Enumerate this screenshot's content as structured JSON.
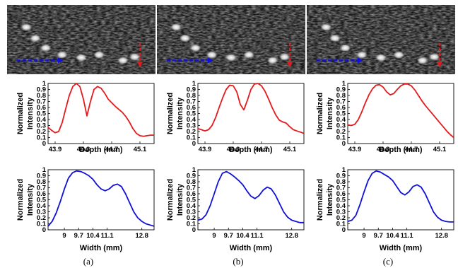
{
  "panels": [
    {
      "caption": "(a)",
      "image": {
        "description_icon": "ultrasound-bmode-image"
      },
      "depth_plot": {
        "type": "line",
        "color": "#e41a1c",
        "xlabel": "Depth (mm)",
        "ylabel_line1": "Normalized",
        "ylabel_line2": "Intensity",
        "xlim": [
          43.8,
          45.3
        ],
        "ylim": [
          0,
          1
        ],
        "xticks": [
          "43.9",
          "44.3",
          "44.7",
          "45.1"
        ],
        "yticks": [
          "0",
          "0.1",
          "0.2",
          "0.3",
          "0.4",
          "0.5",
          "0.6",
          "0.7",
          "0.8",
          "0.9",
          "1"
        ],
        "x": [
          43.8,
          43.85,
          43.9,
          43.95,
          44.0,
          44.05,
          44.1,
          44.15,
          44.2,
          44.25,
          44.3,
          44.35,
          44.4,
          44.45,
          44.5,
          44.55,
          44.6,
          44.65,
          44.7,
          44.75,
          44.8,
          44.85,
          44.9,
          44.95,
          45.0,
          45.05,
          45.1,
          45.15,
          45.2,
          45.25,
          45.3
        ],
        "y": [
          0.27,
          0.22,
          0.18,
          0.2,
          0.35,
          0.58,
          0.8,
          0.95,
          1.0,
          0.95,
          0.74,
          0.46,
          0.7,
          0.9,
          0.95,
          0.92,
          0.84,
          0.74,
          0.68,
          0.62,
          0.57,
          0.52,
          0.45,
          0.36,
          0.25,
          0.17,
          0.13,
          0.12,
          0.13,
          0.14,
          0.14
        ]
      },
      "width_plot": {
        "type": "line",
        "color": "#1010d8",
        "xlabel": "Width (mm)",
        "ylabel_line1": "Normalized",
        "ylabel_line2": "Intensity",
        "xlim": [
          8.2,
          13.4
        ],
        "ylim": [
          0,
          1
        ],
        "xticks": [
          "9",
          "9.7",
          "10.4",
          "11.1",
          "12.8"
        ],
        "yticks": [
          "0",
          "0.1",
          "0.2",
          "0.3",
          "0.4",
          "0.5",
          "0.6",
          "0.7",
          "0.8",
          "0.9",
          "1"
        ],
        "x": [
          8.2,
          8.4,
          8.6,
          8.8,
          9.0,
          9.2,
          9.4,
          9.6,
          9.8,
          10.0,
          10.2,
          10.4,
          10.6,
          10.8,
          11.0,
          11.2,
          11.4,
          11.6,
          11.8,
          12.0,
          12.2,
          12.4,
          12.6,
          12.8,
          13.0,
          13.2,
          13.4
        ],
        "y": [
          0.06,
          0.14,
          0.28,
          0.47,
          0.68,
          0.86,
          0.95,
          0.98,
          0.97,
          0.94,
          0.9,
          0.84,
          0.75,
          0.68,
          0.65,
          0.68,
          0.74,
          0.76,
          0.72,
          0.6,
          0.45,
          0.3,
          0.2,
          0.14,
          0.1,
          0.08,
          0.06
        ]
      }
    },
    {
      "caption": "(b)",
      "image": {
        "description_icon": "ultrasound-bmode-image"
      },
      "depth_plot": {
        "type": "line",
        "color": "#e41a1c",
        "xlabel": "Depth (mm)",
        "ylabel_line1": "Normalized",
        "ylabel_line2": "Intensity",
        "xlim": [
          43.8,
          45.3
        ],
        "ylim": [
          0,
          1
        ],
        "xticks": [
          "43.9",
          "44.3",
          "44.7",
          "45.1"
        ],
        "yticks": [
          "0",
          "0.1",
          "0.2",
          "0.3",
          "0.4",
          "0.5",
          "0.6",
          "0.7",
          "0.8",
          "0.9",
          "1"
        ],
        "x": [
          43.8,
          43.85,
          43.9,
          43.95,
          44.0,
          44.05,
          44.1,
          44.15,
          44.2,
          44.25,
          44.3,
          44.35,
          44.4,
          44.45,
          44.5,
          44.55,
          44.6,
          44.65,
          44.7,
          44.75,
          44.8,
          44.85,
          44.9,
          44.95,
          45.0,
          45.05,
          45.1,
          45.15,
          45.2,
          45.25,
          45.3
        ],
        "y": [
          0.25,
          0.23,
          0.21,
          0.23,
          0.3,
          0.43,
          0.6,
          0.76,
          0.9,
          0.97,
          0.96,
          0.86,
          0.65,
          0.56,
          0.72,
          0.9,
          0.99,
          1.0,
          0.96,
          0.87,
          0.74,
          0.6,
          0.48,
          0.39,
          0.36,
          0.34,
          0.28,
          0.23,
          0.21,
          0.19,
          0.17
        ]
      },
      "width_plot": {
        "type": "line",
        "color": "#1010d8",
        "xlabel": "Width (mm)",
        "ylabel_line1": "Normalized",
        "ylabel_line2": "Intensity",
        "xlim": [
          8.2,
          13.4
        ],
        "ylim": [
          0,
          1
        ],
        "xticks": [
          "9",
          "9.7",
          "10.4",
          "11.1",
          "12.8"
        ],
        "yticks": [
          "0",
          "0.1",
          "0.2",
          "0.3",
          "0.4",
          "0.5",
          "0.6",
          "0.7",
          "0.8",
          "0.9",
          "1"
        ],
        "x": [
          8.2,
          8.4,
          8.6,
          8.8,
          9.0,
          9.2,
          9.4,
          9.6,
          9.8,
          10.0,
          10.2,
          10.4,
          10.6,
          10.8,
          11.0,
          11.2,
          11.4,
          11.6,
          11.8,
          12.0,
          12.2,
          12.4,
          12.6,
          12.8,
          13.0,
          13.2,
          13.4
        ],
        "y": [
          0.16,
          0.18,
          0.25,
          0.4,
          0.6,
          0.8,
          0.94,
          0.97,
          0.93,
          0.88,
          0.82,
          0.75,
          0.65,
          0.56,
          0.52,
          0.57,
          0.66,
          0.71,
          0.68,
          0.58,
          0.44,
          0.3,
          0.21,
          0.16,
          0.14,
          0.12,
          0.12
        ]
      }
    },
    {
      "caption": "(c)",
      "image": {
        "description_icon": "ultrasound-bmode-image"
      },
      "depth_plot": {
        "type": "line",
        "color": "#e41a1c",
        "xlabel": "Depth (mm)",
        "ylabel_line1": "Normalized",
        "ylabel_line2": "Intensity",
        "xlim": [
          43.8,
          45.3
        ],
        "ylim": [
          0,
          1
        ],
        "xticks": [
          "43.9",
          "44.3",
          "44.7",
          "45.1"
        ],
        "yticks": [
          "0",
          "0.1",
          "0.2",
          "0.3",
          "0.4",
          "0.5",
          "0.6",
          "0.7",
          "0.8",
          "0.9",
          "1"
        ],
        "x": [
          43.8,
          43.85,
          43.9,
          43.95,
          44.0,
          44.05,
          44.1,
          44.15,
          44.2,
          44.25,
          44.3,
          44.35,
          44.4,
          44.45,
          44.5,
          44.55,
          44.6,
          44.65,
          44.7,
          44.75,
          44.8,
          44.85,
          44.9,
          44.95,
          45.0,
          45.05,
          45.1,
          45.15,
          45.2,
          45.25,
          45.3
        ],
        "y": [
          0.31,
          0.3,
          0.32,
          0.4,
          0.53,
          0.68,
          0.81,
          0.91,
          0.97,
          0.98,
          0.94,
          0.86,
          0.81,
          0.83,
          0.9,
          0.96,
          0.99,
          0.99,
          0.96,
          0.89,
          0.8,
          0.71,
          0.63,
          0.56,
          0.49,
          0.42,
          0.35,
          0.28,
          0.21,
          0.15,
          0.1
        ]
      },
      "width_plot": {
        "type": "line",
        "color": "#1010d8",
        "xlabel": "Width (mm)",
        "ylabel_line1": "Normalized",
        "ylabel_line2": "Intensity",
        "xlim": [
          8.2,
          13.4
        ],
        "ylim": [
          0,
          1
        ],
        "xticks": [
          "9",
          "9.7",
          "10.4",
          "11.1",
          "12.8"
        ],
        "yticks": [
          "0",
          "0.1",
          "0.2",
          "0.3",
          "0.4",
          "0.5",
          "0.6",
          "0.7",
          "0.8",
          "0.9",
          "1"
        ],
        "x": [
          8.2,
          8.4,
          8.6,
          8.8,
          9.0,
          9.2,
          9.4,
          9.6,
          9.8,
          10.0,
          10.2,
          10.4,
          10.6,
          10.8,
          11.0,
          11.2,
          11.4,
          11.6,
          11.8,
          12.0,
          12.2,
          12.4,
          12.6,
          12.8,
          13.0,
          13.2,
          13.4
        ],
        "y": [
          0.14,
          0.16,
          0.24,
          0.42,
          0.63,
          0.82,
          0.94,
          0.98,
          0.96,
          0.92,
          0.88,
          0.82,
          0.72,
          0.62,
          0.58,
          0.63,
          0.72,
          0.75,
          0.71,
          0.6,
          0.45,
          0.3,
          0.21,
          0.16,
          0.14,
          0.13,
          0.13
        ]
      }
    }
  ],
  "chart_data": [
    {
      "type": "line",
      "panel": "(a)",
      "xlabel": "Depth (mm)",
      "ylabel": "Normalized Intensity",
      "xlim": [
        43.8,
        45.3
      ],
      "ylim": [
        0,
        1
      ]
    },
    {
      "type": "line",
      "panel": "(a)",
      "xlabel": "Width (mm)",
      "ylabel": "Normalized Intensity",
      "xlim": [
        8.2,
        13.4
      ],
      "ylim": [
        0,
        1
      ]
    },
    {
      "type": "line",
      "panel": "(b)",
      "xlabel": "Depth (mm)",
      "ylabel": "Normalized Intensity",
      "xlim": [
        43.8,
        45.3
      ],
      "ylim": [
        0,
        1
      ]
    },
    {
      "type": "line",
      "panel": "(b)",
      "xlabel": "Width (mm)",
      "ylabel": "Normalized Intensity",
      "xlim": [
        8.2,
        13.4
      ],
      "ylim": [
        0,
        1
      ]
    },
    {
      "type": "line",
      "panel": "(c)",
      "xlabel": "Depth (mm)",
      "ylabel": "Normalized Intensity",
      "xlim": [
        43.8,
        45.3
      ],
      "ylim": [
        0,
        1
      ]
    },
    {
      "type": "line",
      "panel": "(c)",
      "xlabel": "Width (mm)",
      "ylabel": "Normalized Intensity",
      "xlim": [
        8.2,
        13.4
      ],
      "ylim": [
        0,
        1
      ]
    }
  ]
}
